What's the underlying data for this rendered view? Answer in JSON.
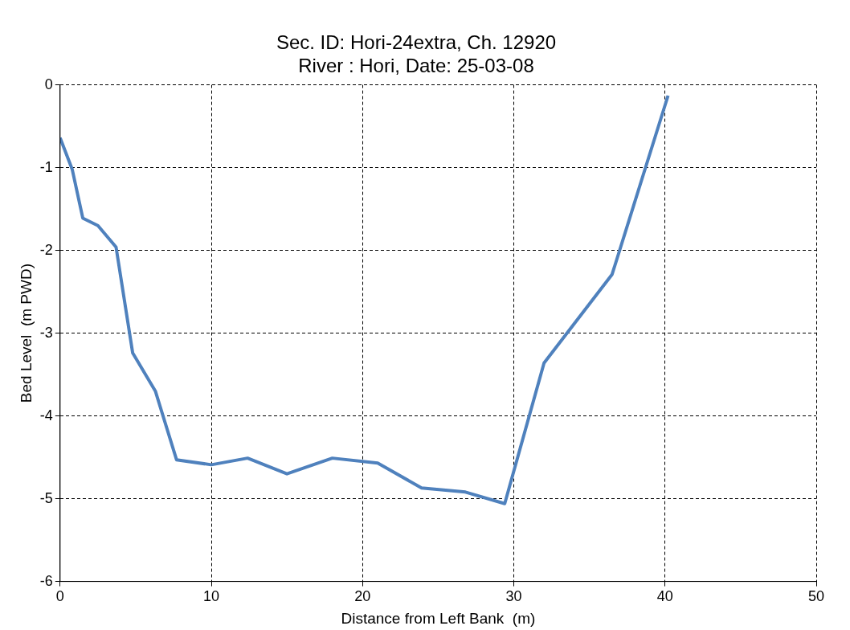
{
  "chart_data": {
    "type": "line",
    "title": "Sec. ID: Hori-24extra, Ch. 12920\nRiver : Hori, Date: 25-03-08",
    "xlabel": "Distance from Left Bank  (m)",
    "ylabel": "Bed Level  (m PWD)",
    "x": [
      0,
      0.8,
      1.5,
      2.5,
      3.7,
      4.8,
      6.3,
      7.7,
      10,
      12.4,
      15,
      18,
      21,
      23.9,
      26.8,
      29.4,
      32,
      36.5,
      40.2
    ],
    "series": [
      {
        "color": "#4f81bd",
        "values": [
          -0.64,
          -1.02,
          -1.61,
          -1.7,
          -1.96,
          -3.24,
          -3.7,
          -4.53,
          -4.59,
          -4.51,
          -4.7,
          -4.51,
          -4.57,
          -4.87,
          -4.92,
          -5.06,
          -3.36,
          -2.29,
          -0.13
        ]
      }
    ],
    "xlim": [
      0,
      50
    ],
    "xticks": [
      0,
      10,
      20,
      30,
      40,
      50
    ],
    "ylim": [
      -6,
      0
    ],
    "yticks": [
      -6,
      -5,
      -4,
      -3,
      -2,
      -1,
      0
    ],
    "grid": true,
    "legend": false,
    "marker": "none",
    "line_style": "solid"
  }
}
